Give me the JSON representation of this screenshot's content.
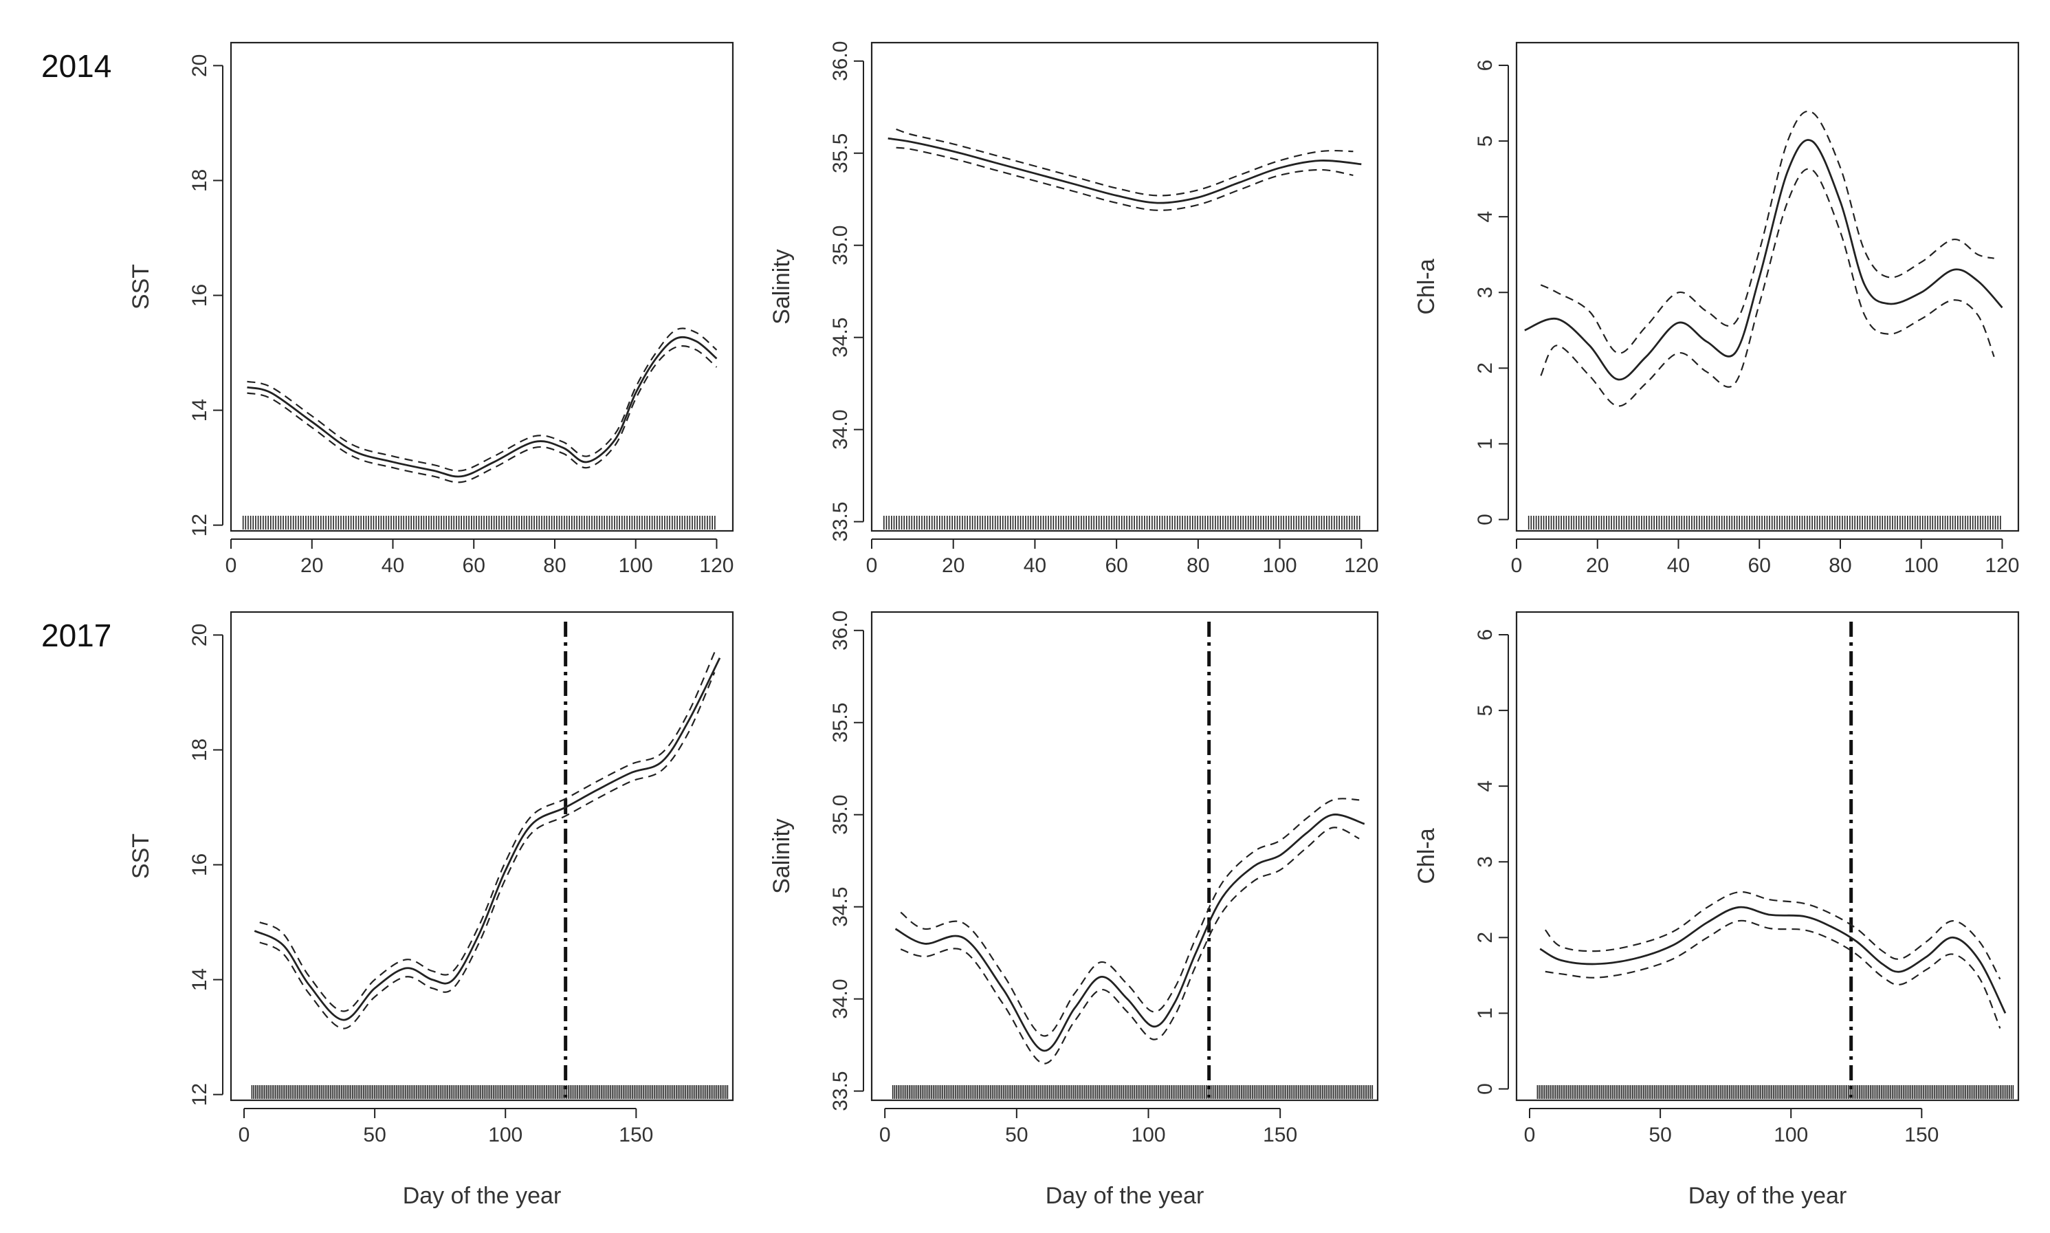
{
  "figure": {
    "row_labels": [
      "2014",
      "2017"
    ],
    "common_xlabel": "Day of the year"
  },
  "chart_data": [
    {
      "type": "line",
      "row": 0,
      "col": 0,
      "ylabel": "SST",
      "xlabel": "",
      "xlim": [
        0,
        124
      ],
      "ylim": [
        11.9,
        20.4
      ],
      "xticks": [
        0,
        20,
        40,
        60,
        80,
        100,
        120
      ],
      "yticks": [
        12,
        14,
        16,
        18,
        20
      ],
      "vline": null,
      "rug": [
        3,
        120
      ],
      "series": [
        {
          "name": "fit",
          "style": "solid",
          "x": [
            4,
            10,
            20,
            30,
            40,
            50,
            57,
            65,
            75,
            82,
            88,
            95,
            100,
            105,
            110,
            115,
            120
          ],
          "y": [
            14.4,
            14.3,
            13.8,
            13.3,
            13.1,
            12.95,
            12.85,
            13.1,
            13.45,
            13.35,
            13.1,
            13.5,
            14.3,
            14.9,
            15.25,
            15.2,
            14.9
          ]
        },
        {
          "name": "upper",
          "style": "dashed",
          "x": [
            4,
            10,
            20,
            30,
            40,
            50,
            57,
            65,
            75,
            82,
            88,
            95,
            100,
            105,
            110,
            115,
            120
          ],
          "y": [
            14.5,
            14.4,
            13.9,
            13.4,
            13.2,
            13.05,
            12.95,
            13.2,
            13.55,
            13.45,
            13.2,
            13.6,
            14.4,
            15.0,
            15.4,
            15.35,
            15.05
          ]
        },
        {
          "name": "lower",
          "style": "dashed",
          "x": [
            4,
            10,
            20,
            30,
            40,
            50,
            57,
            65,
            75,
            82,
            88,
            95,
            100,
            105,
            110,
            115,
            120
          ],
          "y": [
            14.3,
            14.2,
            13.7,
            13.2,
            13.0,
            12.85,
            12.75,
            13.0,
            13.35,
            13.25,
            13.0,
            13.4,
            14.2,
            14.8,
            15.1,
            15.05,
            14.75
          ]
        }
      ]
    },
    {
      "type": "line",
      "row": 0,
      "col": 1,
      "ylabel": "Salinity",
      "xlabel": "",
      "xlim": [
        0,
        124
      ],
      "ylim": [
        33.45,
        36.1
      ],
      "xticks": [
        0,
        20,
        40,
        60,
        80,
        100,
        120
      ],
      "yticks": [
        33.5,
        34.0,
        34.5,
        35.0,
        35.5,
        36.0
      ],
      "vline": null,
      "rug": [
        3,
        120
      ],
      "series": [
        {
          "name": "fit",
          "style": "solid",
          "x": [
            4,
            10,
            20,
            30,
            40,
            50,
            60,
            70,
            80,
            90,
            100,
            110,
            120
          ],
          "y": [
            35.58,
            35.56,
            35.51,
            35.45,
            35.39,
            35.33,
            35.27,
            35.23,
            35.26,
            35.34,
            35.42,
            35.46,
            35.44
          ]
        },
        {
          "name": "upper",
          "style": "dashed",
          "x": [
            6,
            10,
            20,
            30,
            40,
            50,
            60,
            70,
            80,
            90,
            100,
            110,
            118
          ],
          "y": [
            35.63,
            35.6,
            35.55,
            35.49,
            35.43,
            35.37,
            35.31,
            35.27,
            35.3,
            35.38,
            35.46,
            35.51,
            35.51
          ]
        },
        {
          "name": "lower",
          "style": "dashed",
          "x": [
            6,
            10,
            20,
            30,
            40,
            50,
            60,
            70,
            80,
            90,
            100,
            110,
            118
          ],
          "y": [
            35.53,
            35.52,
            35.47,
            35.41,
            35.35,
            35.29,
            35.23,
            35.19,
            35.22,
            35.3,
            35.38,
            35.41,
            35.38
          ]
        }
      ]
    },
    {
      "type": "line",
      "row": 0,
      "col": 2,
      "ylabel": "Chl-a",
      "xlabel": "",
      "xlim": [
        0,
        124
      ],
      "ylim": [
        -0.15,
        6.3
      ],
      "xticks": [
        0,
        20,
        40,
        60,
        80,
        100,
        120
      ],
      "yticks": [
        0,
        1,
        2,
        3,
        4,
        5,
        6
      ],
      "vline": null,
      "rug": [
        3,
        120
      ],
      "series": [
        {
          "name": "fit",
          "style": "solid",
          "x": [
            2,
            10,
            18,
            25,
            32,
            40,
            47,
            54,
            60,
            67,
            73,
            80,
            86,
            92,
            100,
            108,
            114,
            120
          ],
          "y": [
            2.5,
            2.65,
            2.3,
            1.85,
            2.15,
            2.6,
            2.35,
            2.2,
            3.2,
            4.6,
            5.0,
            4.2,
            3.1,
            2.85,
            3.0,
            3.3,
            3.15,
            2.8
          ]
        },
        {
          "name": "upper",
          "style": "dashed",
          "x": [
            6,
            10,
            18,
            25,
            32,
            40,
            47,
            54,
            60,
            67,
            73,
            80,
            86,
            92,
            100,
            108,
            114,
            118
          ],
          "y": [
            3.1,
            3.0,
            2.75,
            2.2,
            2.55,
            3.0,
            2.75,
            2.6,
            3.55,
            5.0,
            5.38,
            4.65,
            3.55,
            3.2,
            3.4,
            3.7,
            3.5,
            3.45
          ]
        },
        {
          "name": "lower",
          "style": "dashed",
          "x": [
            6,
            10,
            18,
            25,
            32,
            40,
            47,
            54,
            60,
            67,
            73,
            80,
            86,
            92,
            100,
            108,
            114,
            118
          ],
          "y": [
            1.9,
            2.3,
            1.9,
            1.5,
            1.8,
            2.2,
            1.95,
            1.8,
            2.85,
            4.2,
            4.62,
            3.8,
            2.7,
            2.45,
            2.65,
            2.9,
            2.7,
            2.15
          ]
        }
      ]
    },
    {
      "type": "line",
      "row": 1,
      "col": 0,
      "ylabel": "SST",
      "xlabel": "Day of the year",
      "xlim": [
        -5,
        187
      ],
      "ylim": [
        11.9,
        20.4
      ],
      "xticks": [
        0,
        50,
        100,
        150
      ],
      "yticks": [
        12,
        14,
        16,
        18,
        20
      ],
      "vline": 123,
      "rug": [
        3,
        185
      ],
      "series": [
        {
          "name": "fit",
          "style": "solid",
          "x": [
            4,
            15,
            25,
            38,
            50,
            62,
            72,
            80,
            90,
            100,
            110,
            123,
            135,
            148,
            160,
            170,
            182
          ],
          "y": [
            14.85,
            14.6,
            13.9,
            13.3,
            13.85,
            14.2,
            14.0,
            14.0,
            14.8,
            15.9,
            16.7,
            17.0,
            17.3,
            17.6,
            17.8,
            18.5,
            19.6
          ]
        },
        {
          "name": "upper",
          "style": "dashed",
          "x": [
            6,
            15,
            25,
            38,
            50,
            62,
            72,
            80,
            90,
            100,
            110,
            123,
            135,
            148,
            160,
            170,
            180
          ],
          "y": [
            15.0,
            14.8,
            14.05,
            13.45,
            14.0,
            14.35,
            14.15,
            14.15,
            14.95,
            16.05,
            16.85,
            17.15,
            17.45,
            17.75,
            17.95,
            18.65,
            19.7
          ]
        },
        {
          "name": "lower",
          "style": "dashed",
          "x": [
            6,
            15,
            25,
            38,
            50,
            62,
            72,
            80,
            90,
            100,
            110,
            123,
            135,
            148,
            160,
            170,
            180
          ],
          "y": [
            14.65,
            14.45,
            13.75,
            13.15,
            13.7,
            14.05,
            13.85,
            13.85,
            14.65,
            15.75,
            16.55,
            16.85,
            17.15,
            17.45,
            17.65,
            18.3,
            19.35
          ]
        }
      ]
    },
    {
      "type": "line",
      "row": 1,
      "col": 1,
      "ylabel": "Salinity",
      "xlabel": "Day of the year",
      "xlim": [
        -5,
        187
      ],
      "ylim": [
        33.45,
        36.1
      ],
      "xticks": [
        0,
        50,
        100,
        150
      ],
      "yticks": [
        33.5,
        34.0,
        34.5,
        35.0,
        35.5,
        36.0
      ],
      "vline": 123,
      "rug": [
        3,
        185
      ],
      "series": [
        {
          "name": "fit",
          "style": "solid",
          "x": [
            4,
            15,
            30,
            45,
            60,
            72,
            82,
            92,
            102,
            110,
            118,
            128,
            140,
            150,
            160,
            170,
            182
          ],
          "y": [
            34.38,
            34.3,
            34.33,
            34.05,
            33.72,
            33.95,
            34.12,
            34.0,
            33.85,
            33.98,
            34.25,
            34.55,
            34.72,
            34.78,
            34.9,
            35.0,
            34.95
          ]
        },
        {
          "name": "upper",
          "style": "dashed",
          "x": [
            6,
            15,
            30,
            45,
            60,
            72,
            82,
            92,
            102,
            110,
            118,
            128,
            140,
            150,
            160,
            170,
            180
          ],
          "y": [
            34.47,
            34.38,
            34.41,
            34.13,
            33.8,
            34.03,
            34.2,
            34.08,
            33.93,
            34.06,
            34.33,
            34.63,
            34.8,
            34.86,
            34.98,
            35.08,
            35.08
          ]
        },
        {
          "name": "lower",
          "style": "dashed",
          "x": [
            6,
            15,
            30,
            45,
            60,
            72,
            82,
            92,
            102,
            110,
            118,
            128,
            140,
            150,
            160,
            170,
            180
          ],
          "y": [
            34.27,
            34.23,
            34.26,
            33.97,
            33.65,
            33.88,
            34.05,
            33.93,
            33.78,
            33.91,
            34.18,
            34.47,
            34.64,
            34.7,
            34.82,
            34.93,
            34.87
          ]
        }
      ]
    },
    {
      "type": "line",
      "row": 1,
      "col": 2,
      "ylabel": "Chl-a",
      "xlabel": "Day of the year",
      "xlim": [
        -5,
        187
      ],
      "ylim": [
        -0.15,
        6.3
      ],
      "xticks": [
        0,
        50,
        100,
        150
      ],
      "yticks": [
        0,
        1,
        2,
        3,
        4,
        5,
        6
      ],
      "vline": 123,
      "rug": [
        3,
        185
      ],
      "series": [
        {
          "name": "fit",
          "style": "solid",
          "x": [
            4,
            12,
            25,
            40,
            55,
            68,
            80,
            92,
            105,
            115,
            125,
            135,
            142,
            152,
            162,
            172,
            182
          ],
          "y": [
            1.85,
            1.7,
            1.65,
            1.72,
            1.9,
            2.2,
            2.4,
            2.3,
            2.28,
            2.15,
            1.95,
            1.65,
            1.55,
            1.75,
            2.0,
            1.7,
            1.0
          ]
        },
        {
          "name": "upper",
          "style": "dashed",
          "x": [
            6,
            12,
            25,
            40,
            55,
            68,
            80,
            92,
            105,
            115,
            125,
            135,
            142,
            152,
            162,
            172,
            180
          ],
          "y": [
            2.1,
            1.88,
            1.82,
            1.9,
            2.08,
            2.4,
            2.6,
            2.5,
            2.45,
            2.32,
            2.12,
            1.82,
            1.72,
            1.95,
            2.22,
            1.95,
            1.45
          ]
        },
        {
          "name": "lower",
          "style": "dashed",
          "x": [
            6,
            12,
            25,
            40,
            55,
            68,
            80,
            92,
            105,
            115,
            125,
            135,
            142,
            152,
            162,
            172,
            180
          ],
          "y": [
            1.55,
            1.52,
            1.47,
            1.55,
            1.72,
            2.0,
            2.22,
            2.12,
            2.1,
            1.98,
            1.78,
            1.48,
            1.38,
            1.58,
            1.78,
            1.47,
            0.8
          ]
        }
      ]
    }
  ]
}
